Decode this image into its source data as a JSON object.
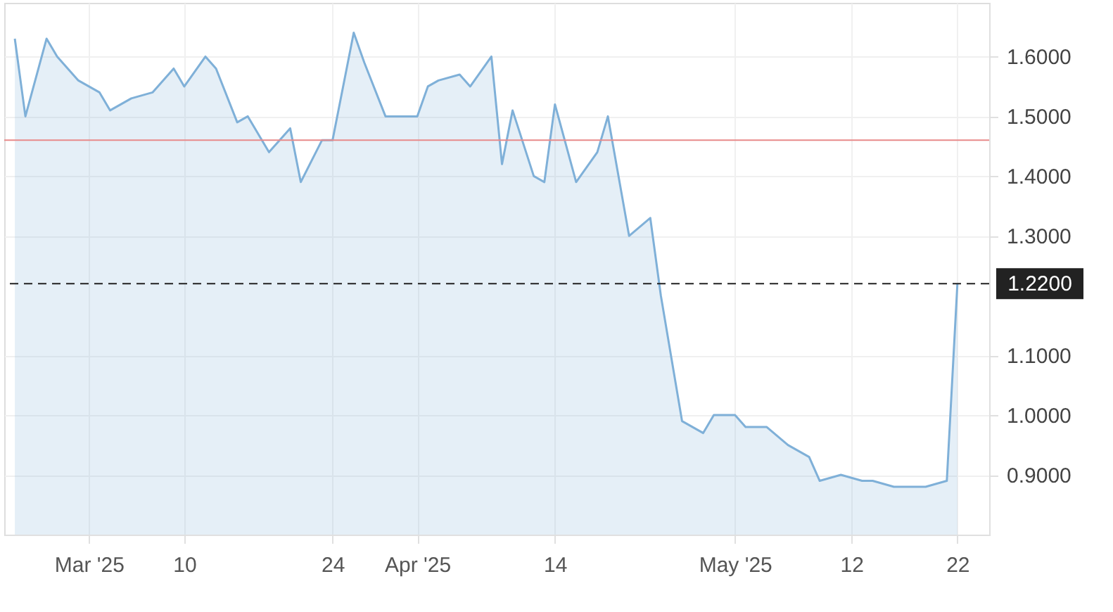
{
  "chart_data": {
    "type": "area",
    "x": [
      "2025-02-22",
      "2025-02-23",
      "2025-02-25",
      "2025-02-26",
      "2025-02-28",
      "2025-03-02",
      "2025-03-03",
      "2025-03-05",
      "2025-03-07",
      "2025-03-09",
      "2025-03-10",
      "2025-03-12",
      "2025-03-13",
      "2025-03-15",
      "2025-03-16",
      "2025-03-18",
      "2025-03-20",
      "2025-03-21",
      "2025-03-23",
      "2025-03-24",
      "2025-03-26",
      "2025-03-27",
      "2025-03-29",
      "2025-03-30",
      "2025-04-01",
      "2025-04-02",
      "2025-04-03",
      "2025-04-05",
      "2025-04-06",
      "2025-04-08",
      "2025-04-09",
      "2025-04-10",
      "2025-04-12",
      "2025-04-13",
      "2025-04-14",
      "2025-04-16",
      "2025-04-18",
      "2025-04-19",
      "2025-04-21",
      "2025-04-23",
      "2025-04-24",
      "2025-04-26",
      "2025-04-28",
      "2025-04-29",
      "2025-05-01",
      "2025-05-02",
      "2025-05-04",
      "2025-05-06",
      "2025-05-08",
      "2025-05-09",
      "2025-05-11",
      "2025-05-13",
      "2025-05-14",
      "2025-05-16",
      "2025-05-18",
      "2025-05-19",
      "2025-05-21",
      "2025-05-22"
    ],
    "series": [
      {
        "color": "#7fb0d8",
        "values": [
          1.63,
          1.5,
          1.63,
          1.6,
          1.56,
          1.54,
          1.51,
          1.53,
          1.54,
          1.58,
          1.55,
          1.6,
          1.58,
          1.49,
          1.5,
          1.44,
          1.48,
          1.39,
          1.46,
          1.46,
          1.64,
          1.59,
          1.5,
          1.5,
          1.5,
          1.55,
          1.56,
          1.57,
          1.55,
          1.6,
          1.42,
          1.51,
          1.4,
          1.39,
          1.52,
          1.39,
          1.44,
          1.5,
          1.3,
          1.33,
          1.2,
          0.99,
          0.97,
          1.0,
          1.0,
          0.98,
          0.98,
          0.95,
          0.93,
          0.89,
          0.9,
          0.89,
          0.89,
          0.88,
          0.88,
          0.88,
          0.89,
          1.22
        ]
      }
    ],
    "xlim": [
      "2025-02-21",
      "2025-05-25"
    ],
    "xticks": [
      {
        "value": "2025-03-01",
        "label": "Mar '25"
      },
      {
        "value": "2025-03-10",
        "label": "10"
      },
      {
        "value": "2025-03-24",
        "label": "24"
      },
      {
        "value": "2025-04-01",
        "label": "Apr '25"
      },
      {
        "value": "2025-04-14",
        "label": "14"
      },
      {
        "value": "2025-05-01",
        "label": "May '25"
      },
      {
        "value": "2025-05-12",
        "label": "12"
      },
      {
        "value": "2025-05-22",
        "label": "22"
      }
    ],
    "ylim": [
      0.8,
      1.69
    ],
    "yticks": [
      {
        "value": 0.9,
        "label": "0.9000"
      },
      {
        "value": 1.0,
        "label": "1.0000"
      },
      {
        "value": 1.1,
        "label": "1.1000"
      },
      {
        "value": 1.3,
        "label": "1.3000"
      },
      {
        "value": 1.4,
        "label": "1.4000"
      },
      {
        "value": 1.5,
        "label": "1.5000"
      },
      {
        "value": 1.6,
        "label": "1.6000"
      }
    ],
    "ref_lines": [
      {
        "axis": "y",
        "value": 1.46,
        "color": "#e88a8a",
        "line_style": "solid"
      },
      {
        "axis": "y",
        "value": 1.22,
        "label": "1.2200",
        "color": "#222222",
        "line_style": "dashed"
      }
    ],
    "grid": true
  }
}
